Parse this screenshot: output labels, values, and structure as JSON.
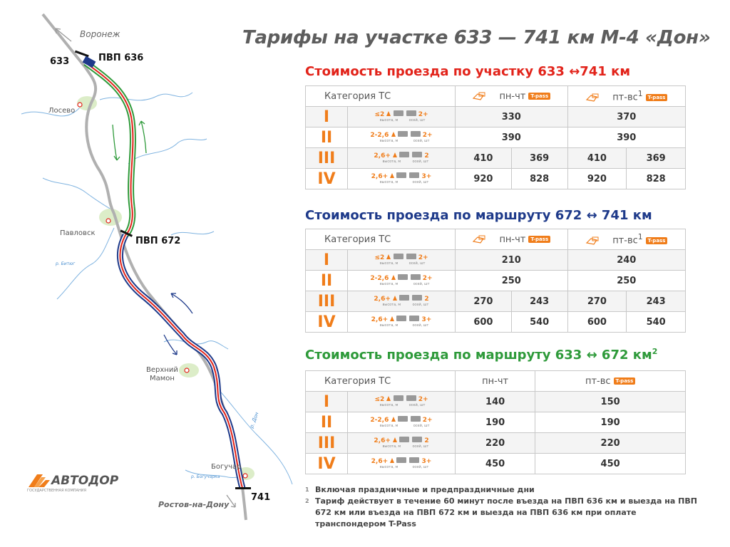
{
  "title": "Тарифы на участке 633 — 741 км М-4 «Дон»",
  "map": {
    "voronezh": "Воронеж",
    "rostov": "Ростов-на-Дону",
    "km633": "633",
    "km741": "741",
    "pvp636": "ПВП 636",
    "pvp672": "ПВП 672",
    "losevo": "Лосево",
    "pavlovsk": "Павловск",
    "bityug": "р. Битюг",
    "vmamon1": "Верхний",
    "vmamon2": "Мамон",
    "don": "р. Дон",
    "boguchar": "Богучар",
    "bogucharka": "р. Богучарка"
  },
  "logo": {
    "name": "АВТОДОР",
    "sub": "ГОСУДАРСТВЕННАЯ КОМПАНИЯ"
  },
  "colors": {
    "red": "#e2231a",
    "blue": "#1e3a8a",
    "green": "#2e9a3a",
    "orange": "#f07d1a"
  },
  "common": {
    "category_header": "Категория ТС",
    "mon_thu": "пн-чт",
    "fri_sun": "пт-вс",
    "fri_sun_note": "1",
    "tpass": "T-pass",
    "height_unit": "высота, м",
    "axles_unit": "осей, шт"
  },
  "categories": [
    {
      "roman": "I",
      "height": "≤2",
      "axles": "2+"
    },
    {
      "roman": "II",
      "height": "2-2,6",
      "axles": "2+"
    },
    {
      "roman": "III",
      "height": "2,6+",
      "axles": "2"
    },
    {
      "roman": "IV",
      "height": "2,6+",
      "axles": "3+"
    }
  ],
  "sections": [
    {
      "title": "Стоимость проезда по участку 633 ↔741 км",
      "rows": [
        {
          "mt": "330",
          "fs": "370"
        },
        {
          "mt": "390",
          "fs": "390"
        },
        {
          "mt": "410",
          "mt_tp": "369",
          "fs": "410",
          "fs_tp": "369"
        },
        {
          "mt": "920",
          "mt_tp": "828",
          "fs": "920",
          "fs_tp": "828"
        }
      ]
    },
    {
      "title": "Стоимость проезда по маршруту 672 ↔ 741 км",
      "rows": [
        {
          "mt": "210",
          "fs": "240"
        },
        {
          "mt": "250",
          "fs": "250"
        },
        {
          "mt": "270",
          "mt_tp": "243",
          "fs": "270",
          "fs_tp": "243"
        },
        {
          "mt": "600",
          "mt_tp": "540",
          "fs": "600",
          "fs_tp": "540"
        }
      ]
    },
    {
      "title": "Стоимость проезда по маршруту 633 ↔ 672 км",
      "title_note": "2",
      "rows": [
        {
          "mt": "140",
          "fs": "150"
        },
        {
          "mt": "190",
          "fs": "190"
        },
        {
          "mt": "220",
          "fs": "220"
        },
        {
          "mt": "450",
          "fs": "450"
        }
      ]
    }
  ],
  "notes": [
    {
      "num": "1",
      "text": "Включая праздничные и предпраздничные дни"
    },
    {
      "num": "2",
      "text": "Тариф действует в течение 60 минут после въезда на ПВП 636 км и выезда на ПВП 672 км или въезда на ПВП 672 км и выезда на ПВП 636 км при оплате транспондером T-Pass"
    }
  ]
}
